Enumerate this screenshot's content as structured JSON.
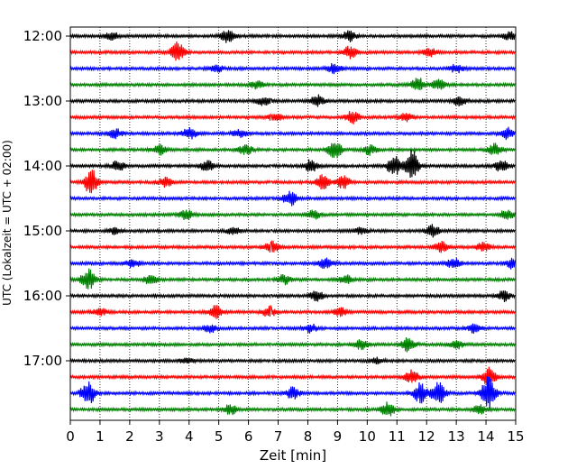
{
  "chart_data": {
    "type": "line",
    "xlabel": "Zeit  [min]",
    "ylabel": "UTC (Lokalzeit = UTC + 02:00)",
    "xlim": [
      0,
      15
    ],
    "x_ticks": [
      0,
      1,
      2,
      3,
      4,
      5,
      6,
      7,
      8,
      9,
      10,
      11,
      12,
      13,
      14,
      15
    ],
    "y_tick_labels": [
      "12:00",
      "13:00",
      "14:00",
      "15:00",
      "16:00",
      "17:00"
    ],
    "y_tick_trace_index": [
      0,
      4,
      8,
      12,
      16,
      20
    ],
    "grid": "vertical-dotted",
    "trace_colors": [
      "#000000",
      "#ff0000",
      "#0000ff",
      "#008000"
    ],
    "series": [
      {
        "start": "12:00",
        "color": "#000000",
        "events": [
          [
            1.4,
            0.4
          ],
          [
            5.3,
            0.7
          ],
          [
            9.4,
            0.5
          ],
          [
            14.8,
            0.4
          ]
        ]
      },
      {
        "start": "12:15",
        "color": "#ff0000",
        "events": [
          [
            3.6,
            1.0
          ],
          [
            9.4,
            0.6
          ],
          [
            12.1,
            0.4
          ]
        ]
      },
      {
        "start": "12:30",
        "color": "#0000ff",
        "events": [
          [
            4.9,
            0.4
          ],
          [
            8.9,
            0.5
          ],
          [
            13.0,
            0.4
          ]
        ]
      },
      {
        "start": "12:45",
        "color": "#008000",
        "events": [
          [
            6.3,
            0.4
          ],
          [
            11.7,
            0.7
          ],
          [
            12.4,
            0.5
          ]
        ]
      },
      {
        "start": "13:00",
        "color": "#000000",
        "events": [
          [
            6.5,
            0.4
          ],
          [
            8.3,
            0.6
          ],
          [
            13.1,
            0.5
          ]
        ]
      },
      {
        "start": "13:15",
        "color": "#ff0000",
        "events": [
          [
            6.9,
            0.4
          ],
          [
            9.5,
            0.6
          ],
          [
            11.3,
            0.4
          ]
        ]
      },
      {
        "start": "13:30",
        "color": "#0000ff",
        "events": [
          [
            1.5,
            0.5
          ],
          [
            4.0,
            0.6
          ],
          [
            5.7,
            0.4
          ],
          [
            14.7,
            0.6
          ]
        ]
      },
      {
        "start": "13:45",
        "color": "#008000",
        "events": [
          [
            3.0,
            0.5
          ],
          [
            5.9,
            0.5
          ],
          [
            8.9,
            0.9
          ],
          [
            10.1,
            0.5
          ],
          [
            14.3,
            0.6
          ]
        ]
      },
      {
        "start": "14:00",
        "color": "#000000",
        "events": [
          [
            1.6,
            0.5
          ],
          [
            4.6,
            0.5
          ],
          [
            8.1,
            0.6
          ],
          [
            10.9,
            1.0
          ],
          [
            11.5,
            1.6
          ],
          [
            14.5,
            0.6
          ]
        ]
      },
      {
        "start": "14:15",
        "color": "#ff0000",
        "events": [
          [
            0.7,
            1.3
          ],
          [
            3.2,
            0.5
          ],
          [
            8.5,
            0.7
          ],
          [
            9.2,
            0.6
          ]
        ]
      },
      {
        "start": "14:30",
        "color": "#0000ff",
        "events": [
          [
            7.4,
            0.7
          ]
        ]
      },
      {
        "start": "14:45",
        "color": "#008000",
        "events": [
          [
            3.9,
            0.5
          ],
          [
            8.2,
            0.4
          ],
          [
            14.7,
            0.5
          ]
        ]
      },
      {
        "start": "15:00",
        "color": "#000000",
        "events": [
          [
            1.5,
            0.3
          ],
          [
            5.5,
            0.4
          ],
          [
            9.8,
            0.3
          ],
          [
            12.2,
            0.6
          ]
        ]
      },
      {
        "start": "15:15",
        "color": "#ff0000",
        "events": [
          [
            6.8,
            0.6
          ],
          [
            12.5,
            0.5
          ],
          [
            13.9,
            0.4
          ]
        ]
      },
      {
        "start": "15:30",
        "color": "#0000ff",
        "events": [
          [
            2.1,
            0.4
          ],
          [
            8.6,
            0.5
          ],
          [
            12.9,
            0.5
          ],
          [
            14.9,
            0.5
          ]
        ]
      },
      {
        "start": "15:45",
        "color": "#008000",
        "events": [
          [
            0.6,
            1.0
          ],
          [
            2.7,
            0.5
          ],
          [
            7.2,
            0.5
          ],
          [
            9.3,
            0.4
          ]
        ]
      },
      {
        "start": "16:00",
        "color": "#000000",
        "events": [
          [
            8.3,
            0.5
          ],
          [
            14.6,
            0.5
          ]
        ]
      },
      {
        "start": "16:15",
        "color": "#ff0000",
        "events": [
          [
            1.0,
            0.4
          ],
          [
            4.9,
            0.6
          ],
          [
            6.7,
            0.5
          ],
          [
            9.1,
            0.4
          ]
        ]
      },
      {
        "start": "16:30",
        "color": "#0000ff",
        "events": [
          [
            4.7,
            0.4
          ],
          [
            8.1,
            0.4
          ],
          [
            13.6,
            0.4
          ]
        ]
      },
      {
        "start": "16:45",
        "color": "#008000",
        "events": [
          [
            9.8,
            0.5
          ],
          [
            11.4,
            0.7
          ],
          [
            13.0,
            0.4
          ]
        ]
      },
      {
        "start": "17:00",
        "color": "#000000",
        "events": [
          [
            3.9,
            0.3
          ],
          [
            10.3,
            0.3
          ]
        ]
      },
      {
        "start": "17:15",
        "color": "#ff0000",
        "events": [
          [
            11.5,
            0.7
          ],
          [
            14.1,
            0.9
          ]
        ]
      },
      {
        "start": "17:30",
        "color": "#0000ff",
        "events": [
          [
            0.6,
            1.3
          ],
          [
            7.5,
            0.6
          ],
          [
            11.8,
            1.0
          ],
          [
            12.4,
            1.1
          ],
          [
            14.1,
            1.8
          ]
        ]
      },
      {
        "start": "17:45",
        "color": "#008000",
        "events": [
          [
            5.4,
            0.5
          ],
          [
            10.7,
            0.7
          ],
          [
            13.8,
            0.4
          ]
        ]
      }
    ]
  }
}
